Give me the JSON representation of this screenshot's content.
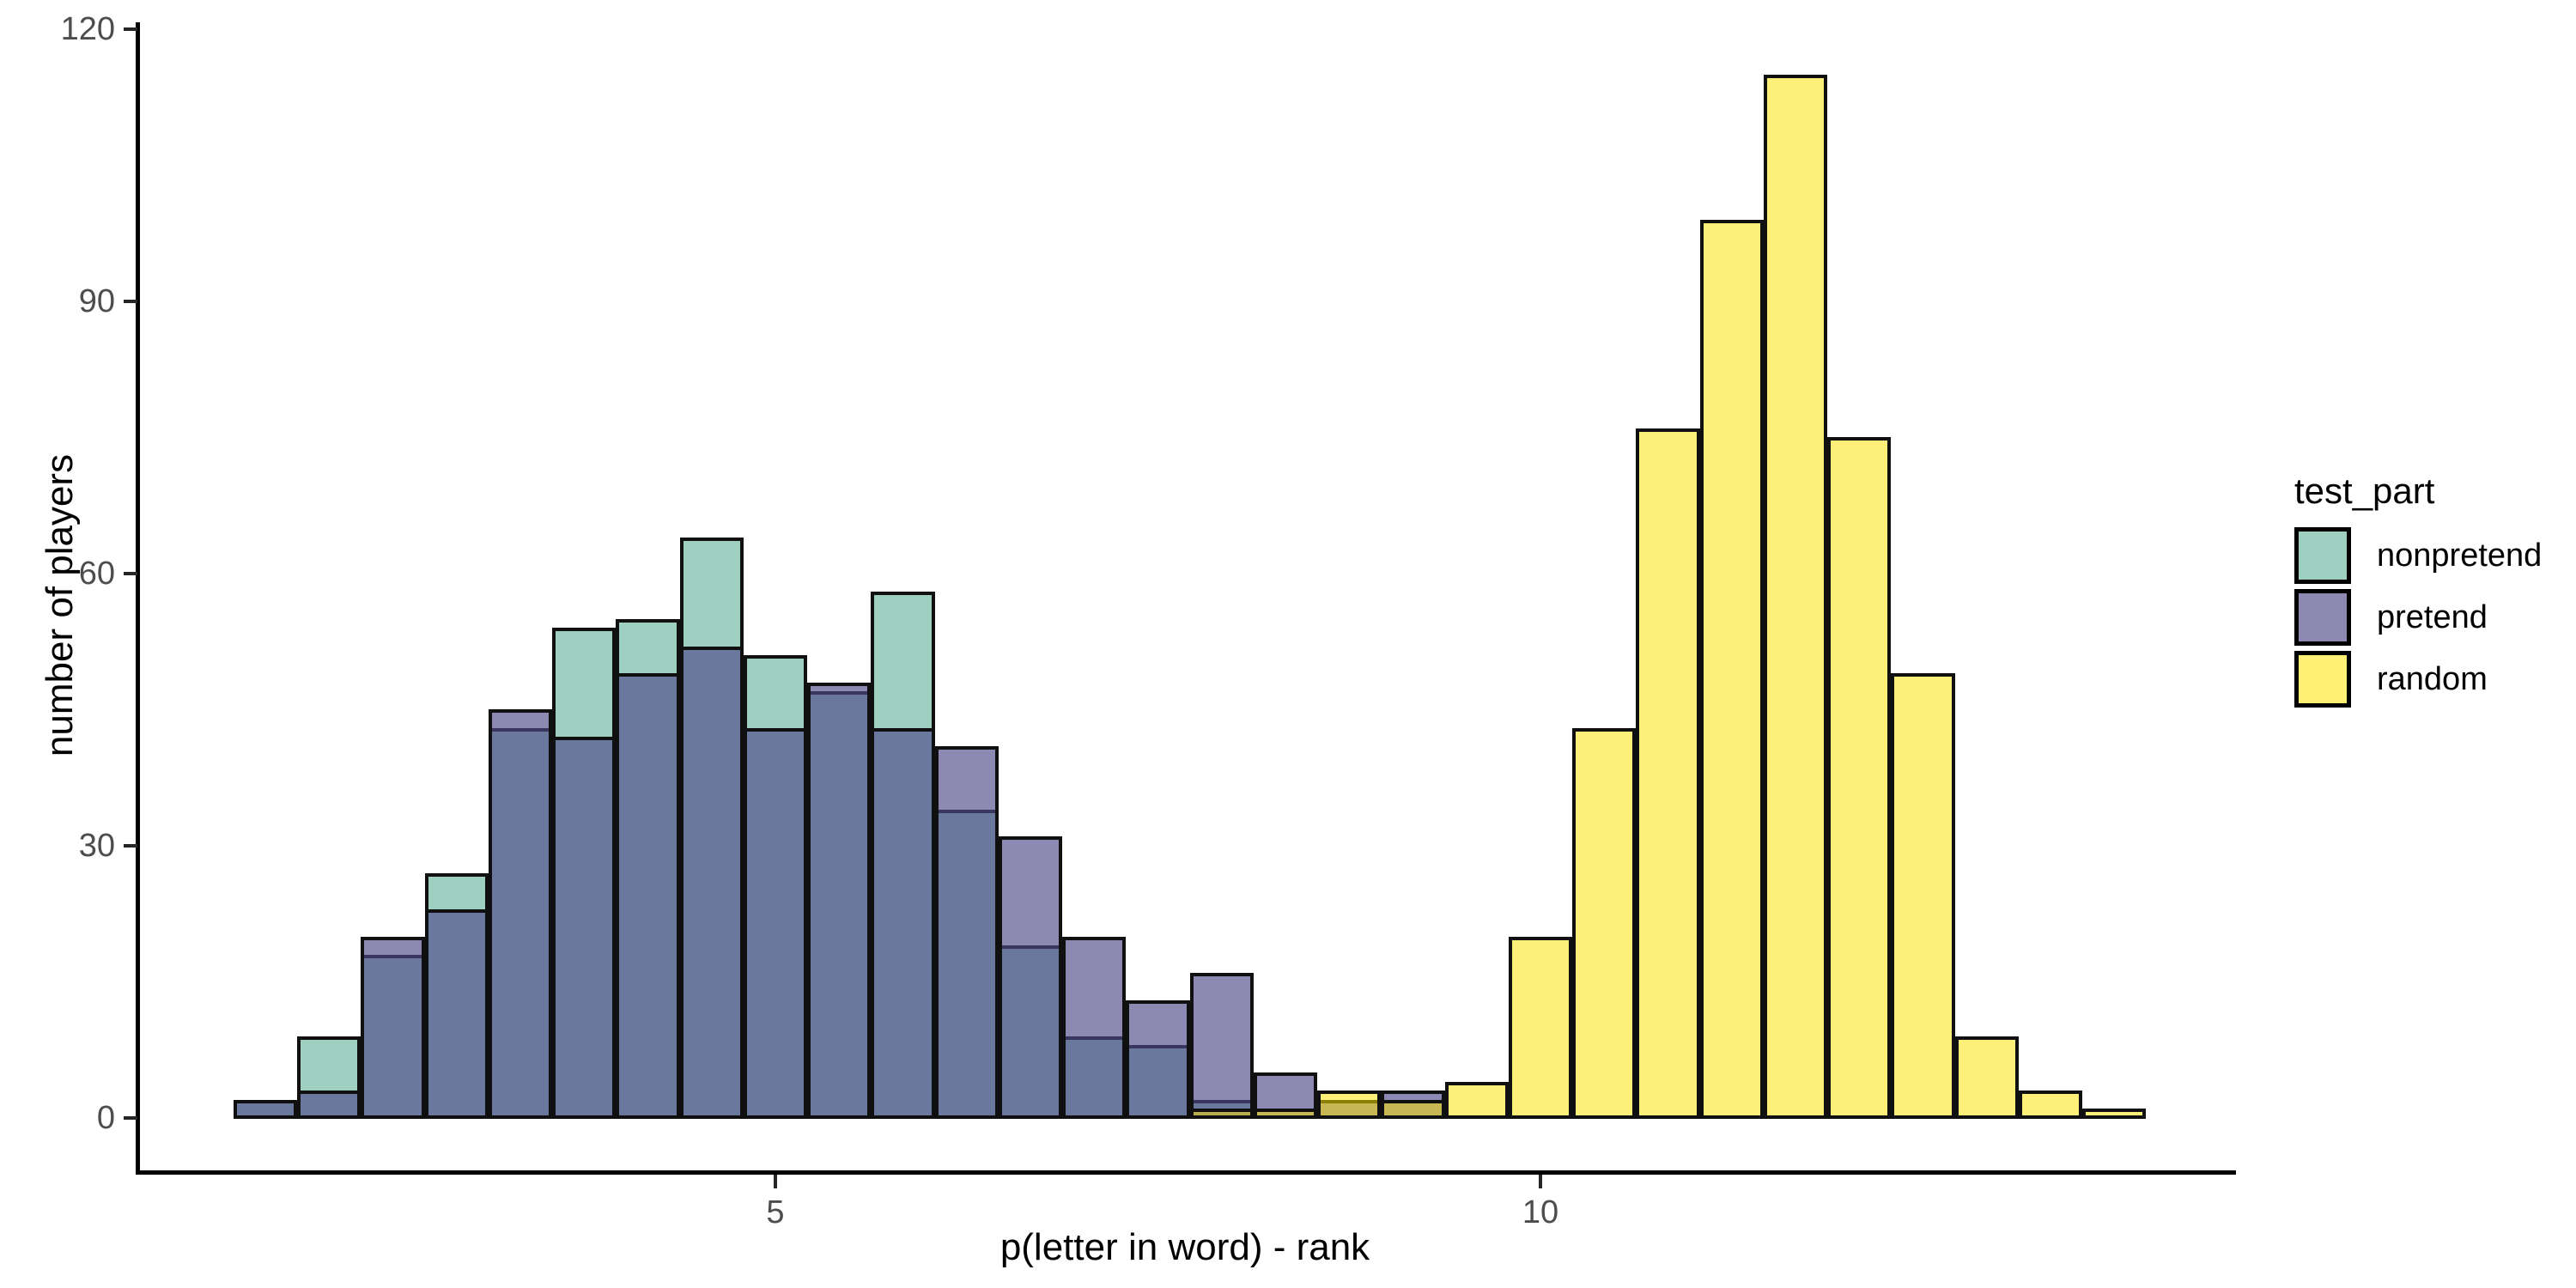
{
  "chart_data": {
    "type": "bar",
    "subtype": "overlaid-histogram",
    "title": "",
    "xlabel": "p(letter in word) - rank",
    "ylabel": "number of players",
    "x_ticks": [
      5,
      10
    ],
    "y_ticks": [
      0,
      30,
      60,
      90,
      120
    ],
    "xlim": [
      1.25,
      14.2
    ],
    "ylim": [
      -5.75,
      120.75
    ],
    "grid": "off",
    "bin_width": 0.4167,
    "bin_centers": [
      1.67,
      2.08,
      2.5,
      2.92,
      3.33,
      3.75,
      4.17,
      4.58,
      5.0,
      5.42,
      5.83,
      6.25,
      6.67,
      7.08,
      7.5,
      7.92,
      8.33,
      8.75,
      9.17,
      9.58,
      10.0,
      10.42,
      10.83,
      11.25,
      11.67,
      12.08,
      12.5,
      12.92,
      13.33,
      13.75
    ],
    "series": [
      {
        "name": "nonpretend",
        "values": [
          2,
          9,
          18,
          27,
          43,
          54,
          55,
          64,
          51,
          47,
          58,
          34,
          19,
          9,
          8,
          2,
          0,
          0,
          0,
          0,
          0,
          0,
          0,
          0,
          0,
          0,
          0,
          0,
          0,
          0
        ]
      },
      {
        "name": "pretend",
        "values": [
          2,
          3,
          20,
          23,
          45,
          42,
          49,
          52,
          43,
          48,
          43,
          41,
          31,
          20,
          13,
          16,
          5,
          2,
          3,
          0,
          0,
          0,
          0,
          0,
          0,
          0,
          0,
          0,
          0,
          0
        ]
      },
      {
        "name": "random",
        "values": [
          0,
          0,
          0,
          0,
          0,
          0,
          0,
          0,
          0,
          0,
          0,
          0,
          0,
          0,
          0,
          1,
          1,
          3,
          2,
          4,
          20,
          43,
          76,
          99,
          115,
          75,
          49,
          9,
          3,
          1
        ]
      }
    ],
    "legend_position": "right"
  },
  "legend": {
    "title": "test_part",
    "entries": [
      {
        "label": "nonpretend",
        "swatch_color": "#9FCFC1"
      },
      {
        "label": "pretend",
        "swatch_color": "#8C89B2"
      },
      {
        "label": "random",
        "swatch_color": "#FDF075"
      }
    ]
  },
  "colors": {
    "nonpretend_fill": "#9FCFC1",
    "pretend_fill_rgba": "rgba(79,75,137,0.654)",
    "random_fill_rgba": "rgba(251,227,0,0.53)",
    "bar_border": "#101010",
    "axis": "#000000",
    "tick_text": "#4d4d4d",
    "overlap_pretend_nonpretend": "#6A7A9B",
    "overlap_random_pretend": "#C7B954"
  },
  "axes_text": {
    "x_title": "p(letter in word) - rank",
    "y_title": "number of players",
    "x_tick_labels": [
      "5",
      "10"
    ],
    "y_tick_labels": [
      "0",
      "30",
      "60",
      "90",
      "120"
    ]
  }
}
